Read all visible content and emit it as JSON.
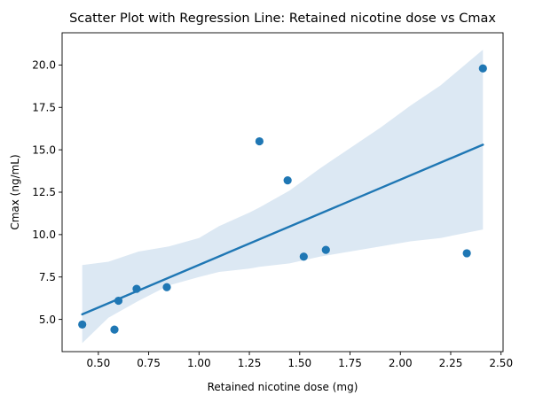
{
  "chart_data": {
    "type": "scatter",
    "title": "Scatter Plot with Regression Line: Retained nicotine dose vs Cmax",
    "xlabel": "Retained nicotine dose (mg)",
    "ylabel": "Cmax (ng/mL)",
    "xlim": [
      0.32,
      2.51
    ],
    "ylim": [
      3.1,
      21.9
    ],
    "xticks": [
      0.5,
      0.75,
      1.0,
      1.25,
      1.5,
      1.75,
      2.0,
      2.25,
      2.5
    ],
    "xtick_labels": [
      "0.50",
      "0.75",
      "1.00",
      "1.25",
      "1.50",
      "1.75",
      "2.00",
      "2.25",
      "2.50"
    ],
    "yticks": [
      5.0,
      7.5,
      10.0,
      12.5,
      15.0,
      17.5,
      20.0
    ],
    "ytick_labels": [
      "5.0",
      "7.5",
      "10.0",
      "12.5",
      "15.0",
      "17.5",
      "20.0"
    ],
    "grid": false,
    "colors": {
      "points": "#1f77b4",
      "line": "#1f77b4",
      "band": "#dce8f3"
    },
    "points": [
      {
        "x": 0.42,
        "y": 4.7
      },
      {
        "x": 0.58,
        "y": 4.4
      },
      {
        "x": 0.6,
        "y": 6.1
      },
      {
        "x": 0.69,
        "y": 6.8
      },
      {
        "x": 0.84,
        "y": 6.9
      },
      {
        "x": 1.3,
        "y": 15.5
      },
      {
        "x": 1.44,
        "y": 13.2
      },
      {
        "x": 1.52,
        "y": 8.7
      },
      {
        "x": 1.63,
        "y": 9.1
      },
      {
        "x": 2.33,
        "y": 8.9
      },
      {
        "x": 2.41,
        "y": 19.8
      }
    ],
    "regression": {
      "x": [
        0.42,
        2.41
      ],
      "y": [
        5.3,
        15.3
      ]
    },
    "confidence_band": {
      "x": [
        0.42,
        0.55,
        0.7,
        0.85,
        1.0,
        1.1,
        1.25,
        1.3,
        1.45,
        1.6,
        1.75,
        1.9,
        2.05,
        2.2,
        2.41
      ],
      "upper": [
        8.2,
        8.4,
        9.0,
        9.3,
        9.8,
        10.5,
        11.3,
        11.6,
        12.6,
        13.9,
        15.1,
        16.3,
        17.6,
        18.8,
        20.9
      ],
      "lower": [
        3.6,
        5.1,
        6.1,
        7.0,
        7.5,
        7.8,
        8.0,
        8.1,
        8.3,
        8.7,
        9.0,
        9.3,
        9.6,
        9.8,
        10.3
      ]
    }
  }
}
